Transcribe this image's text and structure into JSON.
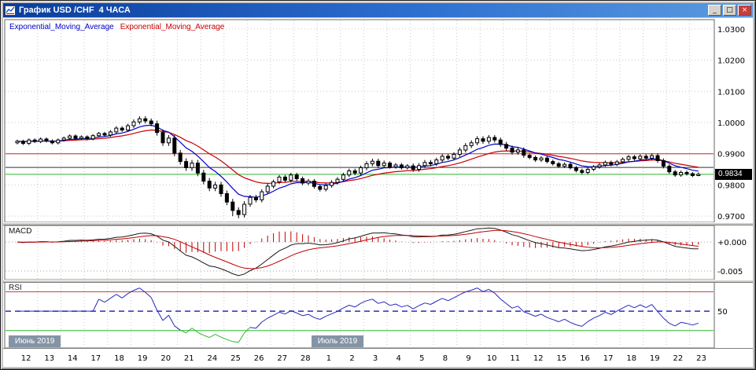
{
  "window": {
    "title": "График USD /CHF  4 ЧАСА",
    "controls": {
      "minimize": "_",
      "maximize": "□",
      "close": "×"
    }
  },
  "legend": {
    "fast_label": "Exponential_Moving_Average",
    "slow_label": "Exponential_Moving_Average"
  },
  "colors": {
    "ema_fast": "#0000c8",
    "ema_slow": "#c80000",
    "macd_line": "#1a1a1a",
    "macd_signal": "#c00000",
    "macd_hist": "#c00000",
    "rsi_line": "#2828c0",
    "rsi_lower_color": "#2db82d",
    "grid": "#c6c9d2",
    "month_tag_bg": "#8494a5",
    "price_tag_bg": "#000000"
  },
  "chart_data": {
    "type": "candlestick",
    "symbol": "USD/CHF",
    "timeframe": "4 часа",
    "x_day_labels": [
      "12",
      "13",
      "14",
      "17",
      "18",
      "19",
      "20",
      "21",
      "24",
      "25",
      "26",
      "27",
      "28",
      "1",
      "2",
      "3",
      "4",
      "5",
      "8",
      "9",
      "10",
      "11",
      "12",
      "15",
      "16",
      "17",
      "18",
      "19",
      "22",
      "23"
    ],
    "month_markers": [
      {
        "label": "Июнь 2019",
        "day_index": 0
      },
      {
        "label": "Июль 2019",
        "day_index": 13
      }
    ],
    "candles_per_day": 4,
    "ohlc": [
      [
        0.9935,
        0.9945,
        0.993,
        0.994
      ],
      [
        0.994,
        0.9945,
        0.9928,
        0.9933
      ],
      [
        0.9933,
        0.9949,
        0.9928,
        0.9944
      ],
      [
        0.9944,
        0.9949,
        0.9934,
        0.9939
      ],
      [
        0.9939,
        0.9952,
        0.9934,
        0.9947
      ],
      [
        0.9947,
        0.9952,
        0.9936,
        0.9941
      ],
      [
        0.9941,
        0.9946,
        0.993,
        0.9935
      ],
      [
        0.9935,
        0.9949,
        0.993,
        0.9944
      ],
      [
        0.9944,
        0.9955,
        0.9939,
        0.995
      ],
      [
        0.995,
        0.9962,
        0.9945,
        0.9957
      ],
      [
        0.9957,
        0.9962,
        0.9944,
        0.9949
      ],
      [
        0.9949,
        0.9959,
        0.9944,
        0.9954
      ],
      [
        0.9954,
        0.9959,
        0.9943,
        0.9948
      ],
      [
        0.9948,
        0.9963,
        0.9943,
        0.9958
      ],
      [
        0.9958,
        0.997,
        0.9953,
        0.9965
      ],
      [
        0.9965,
        0.997,
        0.9955,
        0.996
      ],
      [
        0.996,
        0.9976,
        0.9954,
        0.997
      ],
      [
        0.997,
        0.9988,
        0.9964,
        0.9982
      ],
      [
        0.9982,
        0.9988,
        0.997,
        0.9976
      ],
      [
        0.9976,
        0.9996,
        0.997,
        0.999
      ],
      [
        0.999,
        1.001,
        0.9982,
        1.0002
      ],
      [
        1.0002,
        1.002,
        0.9994,
        1.0012
      ],
      [
        1.0012,
        1.002,
        0.9997,
        1.0005
      ],
      [
        1.0005,
        1.0013,
        0.9988,
        0.9996
      ],
      [
        0.9996,
        1.0006,
        0.9958,
        0.9968
      ],
      [
        0.9968,
        0.9978,
        0.9925,
        0.9935
      ],
      [
        0.9935,
        0.996,
        0.9925,
        0.995
      ],
      [
        0.995,
        0.996,
        0.9892,
        0.9902
      ],
      [
        0.9902,
        0.9912,
        0.9865,
        0.9875
      ],
      [
        0.9875,
        0.9885,
        0.9845,
        0.9855
      ],
      [
        0.9855,
        0.988,
        0.9845,
        0.987
      ],
      [
        0.987,
        0.988,
        0.9828,
        0.9838
      ],
      [
        0.9838,
        0.9848,
        0.9802,
        0.9812
      ],
      [
        0.9812,
        0.9822,
        0.978,
        0.979
      ],
      [
        0.979,
        0.981,
        0.978,
        0.98
      ],
      [
        0.98,
        0.981,
        0.9762,
        0.9772
      ],
      [
        0.9772,
        0.9782,
        0.9735,
        0.9745
      ],
      [
        0.9745,
        0.9755,
        0.97,
        0.9718
      ],
      [
        0.9718,
        0.9728,
        0.9693,
        0.9705
      ],
      [
        0.9705,
        0.9748,
        0.9695,
        0.9738
      ],
      [
        0.9738,
        0.9768,
        0.973,
        0.976
      ],
      [
        0.976,
        0.9768,
        0.9744,
        0.9752
      ],
      [
        0.9752,
        0.9786,
        0.9744,
        0.9778
      ],
      [
        0.9778,
        0.9804,
        0.977,
        0.9796
      ],
      [
        0.9796,
        0.9817,
        0.9789,
        0.981
      ],
      [
        0.981,
        0.9832,
        0.9803,
        0.9825
      ],
      [
        0.9825,
        0.9832,
        0.9808,
        0.9815
      ],
      [
        0.9815,
        0.9839,
        0.9808,
        0.9832
      ],
      [
        0.9832,
        0.9839,
        0.9813,
        0.982
      ],
      [
        0.982,
        0.9827,
        0.9799,
        0.9806
      ],
      [
        0.9806,
        0.9819,
        0.9799,
        0.9812
      ],
      [
        0.9812,
        0.9819,
        0.9788,
        0.9795
      ],
      [
        0.9795,
        0.9802,
        0.9779,
        0.9786
      ],
      [
        0.9786,
        0.9805,
        0.9779,
        0.9798
      ],
      [
        0.9798,
        0.9815,
        0.9791,
        0.9808
      ],
      [
        0.9808,
        0.9825,
        0.9801,
        0.9818
      ],
      [
        0.9818,
        0.9839,
        0.9811,
        0.9832
      ],
      [
        0.9832,
        0.9852,
        0.9825,
        0.9845
      ],
      [
        0.9845,
        0.9852,
        0.9831,
        0.9838
      ],
      [
        0.9838,
        0.9862,
        0.9831,
        0.9855
      ],
      [
        0.9855,
        0.9876,
        0.9847,
        0.9868
      ],
      [
        0.9868,
        0.9884,
        0.986,
        0.9876
      ],
      [
        0.9876,
        0.9884,
        0.9854,
        0.9862
      ],
      [
        0.9862,
        0.9878,
        0.9854,
        0.987
      ],
      [
        0.987,
        0.9876,
        0.9852,
        0.9858
      ],
      [
        0.9858,
        0.987,
        0.9852,
        0.9864
      ],
      [
        0.9864,
        0.987,
        0.9849,
        0.9855
      ],
      [
        0.9855,
        0.9867,
        0.9849,
        0.9861
      ],
      [
        0.9861,
        0.9869,
        0.9842,
        0.985
      ],
      [
        0.985,
        0.987,
        0.9842,
        0.9862
      ],
      [
        0.9862,
        0.988,
        0.9854,
        0.9872
      ],
      [
        0.9872,
        0.988,
        0.986,
        0.9868
      ],
      [
        0.9868,
        0.9887,
        0.9861,
        0.988
      ],
      [
        0.988,
        0.9899,
        0.9873,
        0.9892
      ],
      [
        0.9892,
        0.9899,
        0.9879,
        0.9886
      ],
      [
        0.9886,
        0.9905,
        0.9879,
        0.9898
      ],
      [
        0.9898,
        0.992,
        0.989,
        0.9912
      ],
      [
        0.9912,
        0.9934,
        0.9904,
        0.9926
      ],
      [
        0.9926,
        0.9943,
        0.9918,
        0.9935
      ],
      [
        0.9935,
        0.9956,
        0.9927,
        0.9948
      ],
      [
        0.9948,
        0.9956,
        0.9932,
        0.994
      ],
      [
        0.994,
        0.996,
        0.9932,
        0.9952
      ],
      [
        0.9952,
        0.996,
        0.9936,
        0.9944
      ],
      [
        0.9944,
        0.9952,
        0.9922,
        0.993
      ],
      [
        0.993,
        0.9938,
        0.991,
        0.9918
      ],
      [
        0.9918,
        0.9926,
        0.9897,
        0.9905
      ],
      [
        0.9905,
        0.992,
        0.9897,
        0.9912
      ],
      [
        0.9912,
        0.992,
        0.9887,
        0.9895
      ],
      [
        0.9895,
        0.9901,
        0.9882,
        0.9888
      ],
      [
        0.9888,
        0.9894,
        0.9874,
        0.988
      ],
      [
        0.988,
        0.9892,
        0.9874,
        0.9886
      ],
      [
        0.9886,
        0.9892,
        0.9869,
        0.9875
      ],
      [
        0.9875,
        0.9881,
        0.9862,
        0.9868
      ],
      [
        0.9868,
        0.9874,
        0.9854,
        0.986
      ],
      [
        0.986,
        0.9872,
        0.9854,
        0.9866
      ],
      [
        0.9866,
        0.9872,
        0.9849,
        0.9855
      ],
      [
        0.9855,
        0.9861,
        0.984,
        0.9846
      ],
      [
        0.9846,
        0.9852,
        0.9834,
        0.984
      ],
      [
        0.984,
        0.9856,
        0.9834,
        0.985
      ],
      [
        0.985,
        0.9864,
        0.9844,
        0.9858
      ],
      [
        0.9858,
        0.987,
        0.9852,
        0.9864
      ],
      [
        0.9864,
        0.9878,
        0.9858,
        0.9872
      ],
      [
        0.9872,
        0.9878,
        0.986,
        0.9866
      ],
      [
        0.9866,
        0.988,
        0.986,
        0.9874
      ],
      [
        0.9874,
        0.9888,
        0.9868,
        0.9882
      ],
      [
        0.9882,
        0.9896,
        0.9876,
        0.989
      ],
      [
        0.989,
        0.9896,
        0.9878,
        0.9884
      ],
      [
        0.9884,
        0.9898,
        0.9878,
        0.9892
      ],
      [
        0.9892,
        0.9899,
        0.9879,
        0.9886
      ],
      [
        0.9886,
        0.9901,
        0.9879,
        0.9894
      ],
      [
        0.9894,
        0.9901,
        0.9871,
        0.9878
      ],
      [
        0.9878,
        0.9885,
        0.9853,
        0.986
      ],
      [
        0.986,
        0.9866,
        0.9836,
        0.9842
      ],
      [
        0.9842,
        0.9848,
        0.9826,
        0.9832
      ],
      [
        0.9832,
        0.9846,
        0.9826,
        0.984
      ],
      [
        0.984,
        0.9846,
        0.983,
        0.9836
      ],
      [
        0.9836,
        0.9841,
        0.9825,
        0.983
      ],
      [
        0.983,
        0.984,
        0.9828,
        0.9834
      ]
    ],
    "main": {
      "ylim": [
        0.968,
        1.033
      ],
      "yticks": [
        {
          "label": "1.0300",
          "value": 1.03
        },
        {
          "label": "1.0200",
          "value": 1.02
        },
        {
          "label": "1.0100",
          "value": 1.01
        },
        {
          "label": "1.0000",
          "value": 1.0
        },
        {
          "label": "0.9900",
          "value": 0.99
        },
        {
          "label": "0.9800",
          "value": 0.98
        },
        {
          "label": "0.9700",
          "value": 0.97
        }
      ],
      "hlines": [
        {
          "value": 0.99,
          "color": "#c22828"
        },
        {
          "value": 0.9856,
          "color": "#303030"
        },
        {
          "value": 0.9834,
          "color": "#2db82d"
        }
      ],
      "price_tag": "0.9834"
    },
    "macd": {
      "label": "MACD",
      "yticks": [
        {
          "label": "+0.000",
          "value": 0
        },
        {
          "label": "-0.005",
          "value": -0.005
        }
      ]
    },
    "rsi": {
      "label": "RSI",
      "levels": [
        {
          "value": 70,
          "color": "#c03a3a",
          "style": "solid"
        },
        {
          "value": 50,
          "color": "#2d2db8",
          "style": "dashed",
          "tick": "50"
        },
        {
          "value": 30,
          "color": "#2db82d",
          "style": "solid"
        }
      ]
    }
  }
}
